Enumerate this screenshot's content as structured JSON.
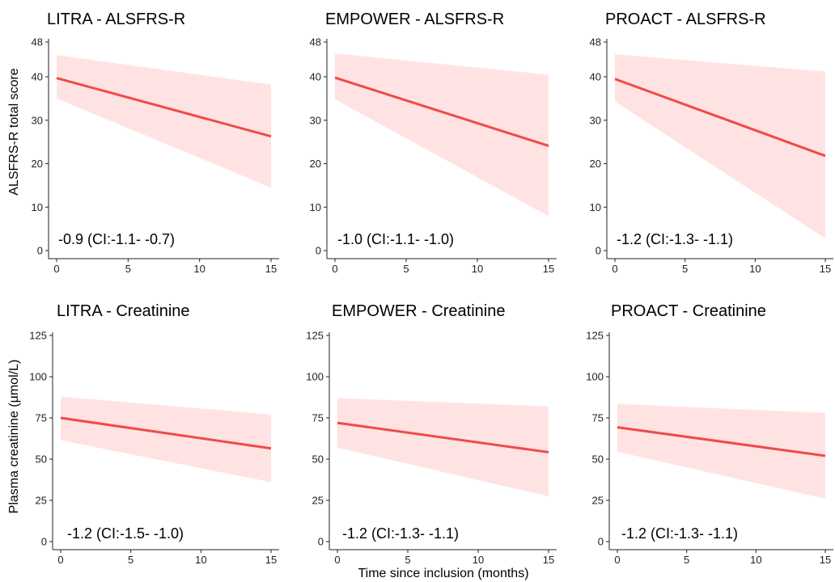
{
  "figure": {
    "ylabel_top": "ALSFRS-R total score",
    "ylabel_bottom": "Plasma creatinine (µmol/L)",
    "xlabel": "Time since inclusion (months)"
  },
  "style": {
    "line_color": "#f04a4a",
    "band_color": "#ffe3e3",
    "axis_color": "#222222"
  },
  "chart_data": [
    {
      "type": "line",
      "title": "LITRA - ALSFRS-R",
      "xlim": [
        0,
        15
      ],
      "ylim": [
        0,
        48
      ],
      "xticks": [
        0,
        5,
        10,
        15
      ],
      "yticks": [
        0,
        10,
        20,
        30,
        40,
        48
      ],
      "x": [
        0,
        15
      ],
      "y": [
        39.7,
        26.3
      ],
      "ci_lower": [
        35.0,
        14.5
      ],
      "ci_upper": [
        45.0,
        38.2
      ],
      "annotation": "-0.9 (CI:-1.1- -0.7)"
    },
    {
      "type": "line",
      "title": "EMPOWER - ALSFRS-R",
      "xlim": [
        0,
        15
      ],
      "ylim": [
        0,
        48
      ],
      "xticks": [
        0,
        5,
        10,
        15
      ],
      "yticks": [
        0,
        10,
        20,
        30,
        40,
        48
      ],
      "x": [
        0,
        15
      ],
      "y": [
        39.8,
        24.1
      ],
      "ci_lower": [
        34.8,
        7.9
      ],
      "ci_upper": [
        45.4,
        40.5
      ],
      "annotation": "-1.0 (CI:-1.1- -1.0)"
    },
    {
      "type": "line",
      "title": "PROACT - ALSFRS-R",
      "xlim": [
        0,
        15
      ],
      "ylim": [
        0,
        48
      ],
      "xticks": [
        0,
        5,
        10,
        15
      ],
      "yticks": [
        0,
        10,
        20,
        30,
        40,
        48
      ],
      "x": [
        0,
        15
      ],
      "y": [
        39.5,
        21.8
      ],
      "ci_lower": [
        34.3,
        2.8
      ],
      "ci_upper": [
        45.2,
        41.2
      ],
      "annotation": "-1.2 (CI:-1.3- -1.1)"
    },
    {
      "type": "line",
      "title": "LITRA - Creatinine",
      "xlim": [
        0,
        15
      ],
      "ylim": [
        0,
        125
      ],
      "xticks": [
        0,
        5,
        10,
        15
      ],
      "yticks": [
        0,
        25,
        50,
        75,
        100,
        125
      ],
      "x": [
        0,
        15
      ],
      "y": [
        75,
        56.5
      ],
      "ci_lower": [
        61.5,
        36
      ],
      "ci_upper": [
        88,
        77
      ],
      "annotation": "-1.2 (CI:-1.5- -1.0)"
    },
    {
      "type": "line",
      "title": "EMPOWER - Creatinine",
      "xlim": [
        0,
        15
      ],
      "ylim": [
        0,
        125
      ],
      "xticks": [
        0,
        5,
        10,
        15
      ],
      "yticks": [
        0,
        25,
        50,
        75,
        100,
        125
      ],
      "x": [
        0,
        15
      ],
      "y": [
        72,
        54.2
      ],
      "ci_lower": [
        57,
        27.5
      ],
      "ci_upper": [
        87,
        82
      ],
      "annotation": "-1.2 (CI:-1.3- -1.1)"
    },
    {
      "type": "line",
      "title": "PROACT - Creatinine",
      "xlim": [
        0,
        15
      ],
      "ylim": [
        0,
        125
      ],
      "xticks": [
        0,
        5,
        10,
        15
      ],
      "yticks": [
        0,
        25,
        50,
        75,
        100,
        125
      ],
      "x": [
        0,
        15
      ],
      "y": [
        69.3,
        52
      ],
      "ci_lower": [
        54.5,
        26
      ],
      "ci_upper": [
        83.5,
        78
      ],
      "annotation": "-1.2 (CI:-1.3- -1.1)"
    }
  ]
}
